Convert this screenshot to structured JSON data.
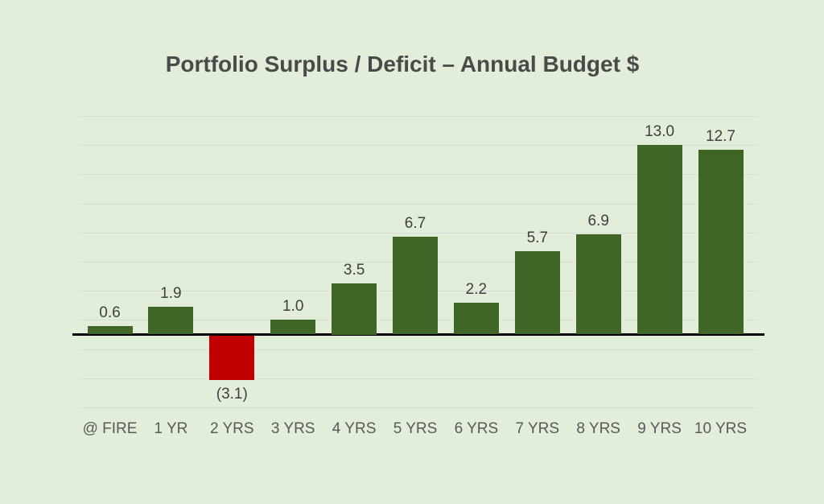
{
  "chart_data": {
    "type": "bar",
    "title": "Portfolio Surplus / Deficit – Annual Budget $",
    "categories": [
      "@ FIRE",
      "1 YR",
      "2 YRS",
      "3 YRS",
      "4 YRS",
      "5 YRS",
      "6 YRS",
      "7 YRS",
      "8 YRS",
      "9 YRS",
      "10 YRS"
    ],
    "values": [
      0.6,
      1.9,
      -3.1,
      1.0,
      3.5,
      6.7,
      2.2,
      5.7,
      6.9,
      13.0,
      12.7
    ],
    "data_labels": [
      "0.6",
      "1.9",
      "(3.1)",
      "1.0",
      "3.5",
      "6.7",
      "2.2",
      "5.7",
      "6.9",
      "13.0",
      "12.7"
    ],
    "xlabel": "",
    "ylabel": "",
    "ylim": [
      -5,
      15
    ],
    "gridline_values": [
      15,
      13,
      11,
      9,
      7,
      5,
      3,
      1,
      -1,
      -3,
      -5
    ],
    "grid": "on",
    "legend": "none",
    "y_axis_labels": "hidden",
    "colors": {
      "background": "#E2EEDA",
      "bar_positive": "#3F6626",
      "bar_negative": "#C00000",
      "axis_line": "#000000",
      "gridline": "#D5DDD6",
      "title_text": "#4A4A4A",
      "data_label_text": "#3F3F3F",
      "axis_label_text": "#595959"
    }
  }
}
